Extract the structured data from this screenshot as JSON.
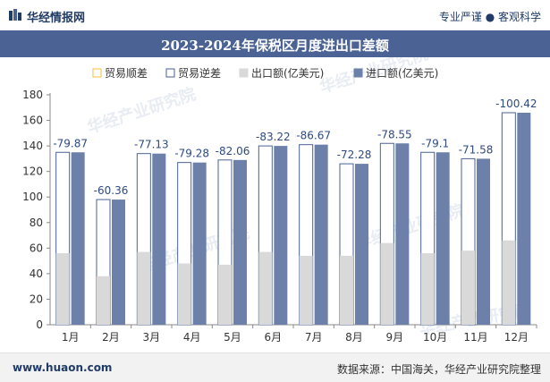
{
  "header": {
    "brand": "华经情报网",
    "tagline": "专业严谨 ● 客观科学"
  },
  "title": "2023-2024年保税区月度进出口差额",
  "footer": {
    "url": "www.huaon.com",
    "source": "数据来源：中国海关，华经产业研究院整理"
  },
  "watermark": "华经产业研究院",
  "colors": {
    "export": "#d9d9d9",
    "import": "#6d80aa",
    "surplus": "#f5c242",
    "deficit": "#4a6294",
    "deficitLabel": "#2e4a80",
    "titlebar": "#4a6294"
  },
  "chart_data": {
    "type": "bar",
    "categories": [
      "1月",
      "2月",
      "3月",
      "4月",
      "5月",
      "6月",
      "7月",
      "8月",
      "9月",
      "10月",
      "11月",
      "12月"
    ],
    "series": [
      {
        "name": "贸易顺差",
        "values": [
          null,
          null,
          null,
          null,
          null,
          null,
          null,
          null,
          null,
          null,
          null,
          null
        ]
      },
      {
        "name": "贸易逆差",
        "values": [
          -79.87,
          -60.36,
          -77.13,
          -79.28,
          -82.06,
          -83.22,
          -86.67,
          -72.28,
          -78.55,
          -79.1,
          -71.58,
          -100.42
        ]
      },
      {
        "name": "出口额(亿美元)",
        "values": [
          56,
          38,
          57,
          48,
          47,
          57,
          54,
          54,
          64,
          56,
          58,
          66
        ]
      },
      {
        "name": "进口额(亿美元)",
        "values": [
          135,
          98,
          134,
          127,
          129,
          140,
          141,
          126,
          142,
          135,
          130,
          166
        ]
      }
    ],
    "data_labels": [
      "-79.87",
      "-60.36",
      "-77.13",
      "-79.28",
      "-82.06",
      "-83.22",
      "-86.67",
      "-72.28",
      "-78.55",
      "-79.1",
      "-71.58",
      "-100.42"
    ],
    "ylim": [
      0,
      180
    ],
    "yticks": [
      0,
      20,
      40,
      60,
      80,
      100,
      120,
      140,
      160,
      180
    ],
    "xlabel": "",
    "ylabel": "",
    "legend_position": "top",
    "grid": false
  }
}
